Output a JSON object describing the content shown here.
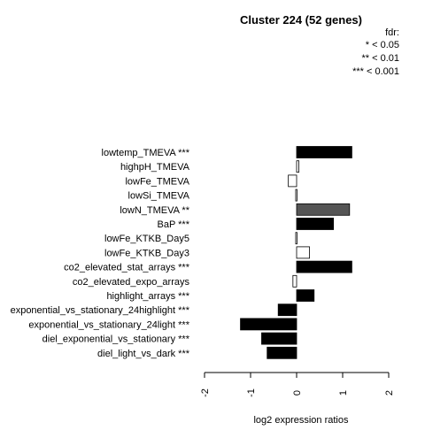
{
  "chart_data": {
    "type": "bar",
    "orientation": "horizontal",
    "title": "Cluster 224 (52 genes)",
    "xlabel": "log2 expression ratios",
    "ylabel": "",
    "xlim": [
      -2,
      2
    ],
    "xticks": [
      "-2",
      "-1",
      "0",
      "1",
      "2"
    ],
    "legend": {
      "placement": "top-right",
      "title": "fdr:",
      "entries": [
        "* < 0.05",
        "** < 0.01",
        "*** < 0.001"
      ]
    },
    "categories": [
      "lowtemp_TMEVA ***",
      "highpH_TMEVA",
      "lowFe_TMEVA",
      "lowSi_TMEVA",
      "lowN_TMEVA **",
      "BaP ***",
      "lowFe_KTKB_Day5",
      "lowFe_KTKB_Day3",
      "co2_elevated_stat_arrays ***",
      "co2_elevated_expo_arrays",
      "highlight_arrays ***",
      "exponential_vs_stationary_24highlight ***",
      "exponential_vs_stationary_24light ***",
      "diel_exponential_vs_stationary ***",
      "diel_light_vs_dark ***"
    ],
    "values": [
      1.2,
      0.05,
      -0.18,
      -0.02,
      1.15,
      0.8,
      -0.02,
      0.28,
      1.2,
      -0.08,
      0.38,
      -0.4,
      -1.22,
      -0.76,
      -0.64
    ],
    "bar_colors": [
      "#000000",
      "#ffffff",
      "#ffffff",
      "#ffffff",
      "#555555",
      "#000000",
      "#ffffff",
      "#ffffff",
      "#000000",
      "#ffffff",
      "#000000",
      "#000000",
      "#000000",
      "#000000",
      "#000000"
    ]
  }
}
